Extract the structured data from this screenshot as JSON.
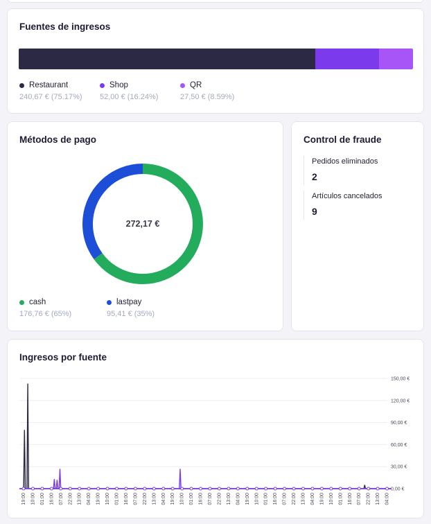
{
  "sources": {
    "title": "Fuentes de ingresos",
    "items": [
      {
        "name": "Restaurant",
        "value": "240,67 € (75.17%)",
        "share": 75.17,
        "color": "#2c2945"
      },
      {
        "name": "Shop",
        "value": "52,00 € (16.24%)",
        "share": 16.24,
        "color": "#7c3aed"
      },
      {
        "name": "QR",
        "value": "27,50 € (8.59%)",
        "share": 8.59,
        "color": "#a855f7"
      }
    ]
  },
  "payments": {
    "title": "Métodos de pago",
    "total": "272,17 €",
    "items": [
      {
        "name": "cash",
        "value": "176,76 € (65%)",
        "share": 65,
        "color": "#22ac5c"
      },
      {
        "name": "lastpay",
        "value": "95,41 € (35%)",
        "share": 35,
        "color": "#1d4ed8"
      }
    ]
  },
  "fraud": {
    "title": "Control de fraude",
    "stats": [
      {
        "label": "Pedidos eliminados",
        "value": "2"
      },
      {
        "label": "Artículos cancelados",
        "value": "9"
      }
    ]
  },
  "chart": {
    "title": "Ingresos por fuente"
  },
  "chart_data": {
    "type": "line",
    "title": "Ingresos por fuente",
    "ylim": [
      0,
      150
    ],
    "yticks": [
      "0,00 €",
      "30,00 €",
      "60,00 €",
      "90,00 €",
      "120,00 €",
      "150,00 €"
    ],
    "ytick_values": [
      0,
      30,
      60,
      90,
      120,
      150
    ],
    "grid": true,
    "x": [
      "19:00",
      "10:00",
      "01:00",
      "16:00",
      "07:00",
      "22:00",
      "13:00",
      "04:00",
      "19:00",
      "10:00",
      "01:00",
      "16:00",
      "07:00",
      "22:00",
      "13:00",
      "04:00",
      "19:00",
      "10:00",
      "01:00",
      "16:00",
      "07:00",
      "22:00",
      "13:00",
      "04:00",
      "19:00",
      "10:00",
      "01:00",
      "16:00",
      "07:00",
      "22:00",
      "13:00",
      "04:00",
      "19:00",
      "10:00",
      "01:00",
      "16:00",
      "07:00",
      "22:00",
      "13:00",
      "04:00"
    ],
    "series": [
      {
        "color": "#2c2945",
        "spikes": [
          {
            "at": 0.1,
            "value": 80
          },
          {
            "at": 0.45,
            "value": 143
          },
          {
            "at": 36.6,
            "value": 5
          }
        ]
      },
      {
        "color": "#7c3aed",
        "spikes": [
          {
            "at": 3.3,
            "value": 13
          },
          {
            "at": 3.6,
            "value": 12
          },
          {
            "at": 3.9,
            "value": 27
          },
          {
            "at": 16.8,
            "value": 27
          }
        ]
      }
    ]
  }
}
